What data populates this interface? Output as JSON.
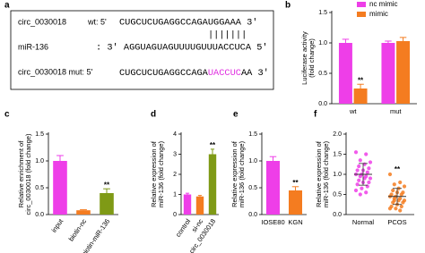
{
  "panel_a": {
    "label": "a",
    "wt_name": "circ_0030018",
    "wt_prefix": "wt: 5'",
    "wt_seq": "CUGCUCUGAGGCCAGAUGGAAA 3'",
    "pairs": "|||||||",
    "mir_name": "miR-136",
    "mir_seq": ": 3' AGGUAGUAGUUUUGUUUACCUCA 5'",
    "mut_name": "circ_0030018 mut: 5'",
    "mut_seq": [
      "CUGCUCUGAGGCCAGA",
      "UACCUC",
      "AA 3'"
    ]
  },
  "chart_data": [
    {
      "type": "bar",
      "label": "b",
      "y_label": [
        "Luciferase activity",
        "(fold change)"
      ],
      "categories": [
        "wt",
        "mut"
      ],
      "series": [
        {
          "name": "nc mimic",
          "color": "#ee3ee8",
          "values": [
            1.0,
            1.0
          ],
          "errors": [
            0.06,
            0.03
          ],
          "significance": [
            null,
            null
          ]
        },
        {
          "name": "mimic",
          "color": "#f47c20",
          "values": [
            0.25,
            1.03
          ],
          "errors": [
            0.07,
            0.06
          ],
          "significance": [
            "**",
            null
          ]
        }
      ],
      "ylim": [
        0,
        1.5
      ],
      "yticks": [
        {
          "value": 0,
          "label": "0.0"
        },
        {
          "value": 0.5,
          "label": "0.5"
        },
        {
          "value": 1,
          "label": "1.0"
        },
        {
          "value": 1.5,
          "label": "1.5"
        }
      ],
      "legend": "top"
    },
    {
      "type": "bar",
      "label": "c",
      "y_label": [
        "Relative enrichment of",
        "circ_0030018 (fold change)"
      ],
      "categories": [
        "input",
        "biotin-nc",
        "biotin-miR-136"
      ],
      "values": [
        1.0,
        0.08,
        0.4
      ],
      "errors": [
        0.1,
        0.01,
        0.08
      ],
      "colors": [
        "#ee3ee8",
        "#f47c20",
        "#7f9a16"
      ],
      "significance": [
        null,
        null,
        "**"
      ],
      "ylim": [
        0,
        1.5
      ],
      "yticks": [
        {
          "value": 0,
          "label": "0.0"
        },
        {
          "value": 0.5,
          "label": "0.5"
        },
        {
          "value": 1,
          "label": "1.0"
        },
        {
          "value": 1.5,
          "label": "1.5"
        }
      ]
    },
    {
      "type": "bar",
      "label": "d",
      "y_label": [
        "Relative expression of",
        "miR-136 (fold change)"
      ],
      "categories": [
        "control",
        "si-nc",
        "si-circ_0030018"
      ],
      "values": [
        1.0,
        0.9,
        3.0
      ],
      "errors": [
        0.06,
        0.05,
        0.25
      ],
      "colors": [
        "#ee3ee8",
        "#f47c20",
        "#7f9a16"
      ],
      "significance": [
        null,
        null,
        "**"
      ],
      "ylim": [
        0,
        4
      ],
      "yticks": [
        0,
        1,
        2,
        3,
        4
      ]
    },
    {
      "type": "bar",
      "label": "e",
      "y_label": [
        "Relative expression of",
        "miR-136 (fold change)"
      ],
      "categories": [
        "IOSE80",
        "KGN"
      ],
      "values": [
        1.0,
        0.45
      ],
      "errors": [
        0.08,
        0.07
      ],
      "colors": [
        "#ee3ee8",
        "#f47c20"
      ],
      "significance": [
        null,
        "**"
      ],
      "ylim": [
        0,
        1.5
      ],
      "yticks": [
        {
          "value": 0,
          "label": "0.0"
        },
        {
          "value": 0.5,
          "label": "0.5"
        },
        {
          "value": 1,
          "label": "1.0"
        },
        {
          "value": 1.5,
          "label": "1.5"
        }
      ]
    },
    {
      "type": "strip",
      "label": "f",
      "y_label": [
        "Relative expression of",
        "miR-136 (fold change)"
      ],
      "categories": [
        "Normal",
        "PCOS"
      ],
      "groups": [
        {
          "color": "#ee3ee8",
          "values": [
            1.55,
            1.5,
            1.35,
            1.3,
            1.25,
            1.2,
            1.15,
            1.1,
            1.1,
            1.05,
            1.0,
            1.0,
            0.95,
            0.95,
            0.9,
            0.9,
            0.85,
            0.8,
            0.8,
            0.75,
            0.7,
            0.65,
            0.6,
            0.55,
            0.5
          ],
          "mean": 1.0,
          "sd": 0.27,
          "significance": null
        },
        {
          "color": "#f47c20",
          "values": [
            1.0,
            0.8,
            0.75,
            0.7,
            0.65,
            0.6,
            0.55,
            0.55,
            0.5,
            0.5,
            0.45,
            0.45,
            0.4,
            0.4,
            0.35,
            0.35,
            0.3,
            0.3,
            0.25,
            0.2,
            0.2,
            0.15,
            0.15,
            0.1,
            0.35
          ],
          "mean": 0.45,
          "sd": 0.2,
          "significance": "**"
        }
      ],
      "ylim": [
        0,
        2
      ],
      "yticks": [
        {
          "value": 0,
          "label": "0.0"
        },
        {
          "value": 0.5,
          "label": "0.5"
        },
        {
          "value": 1,
          "label": "1.0"
        },
        {
          "value": 1.5,
          "label": "1.5"
        },
        {
          "value": 2,
          "label": "2.0"
        }
      ]
    }
  ]
}
